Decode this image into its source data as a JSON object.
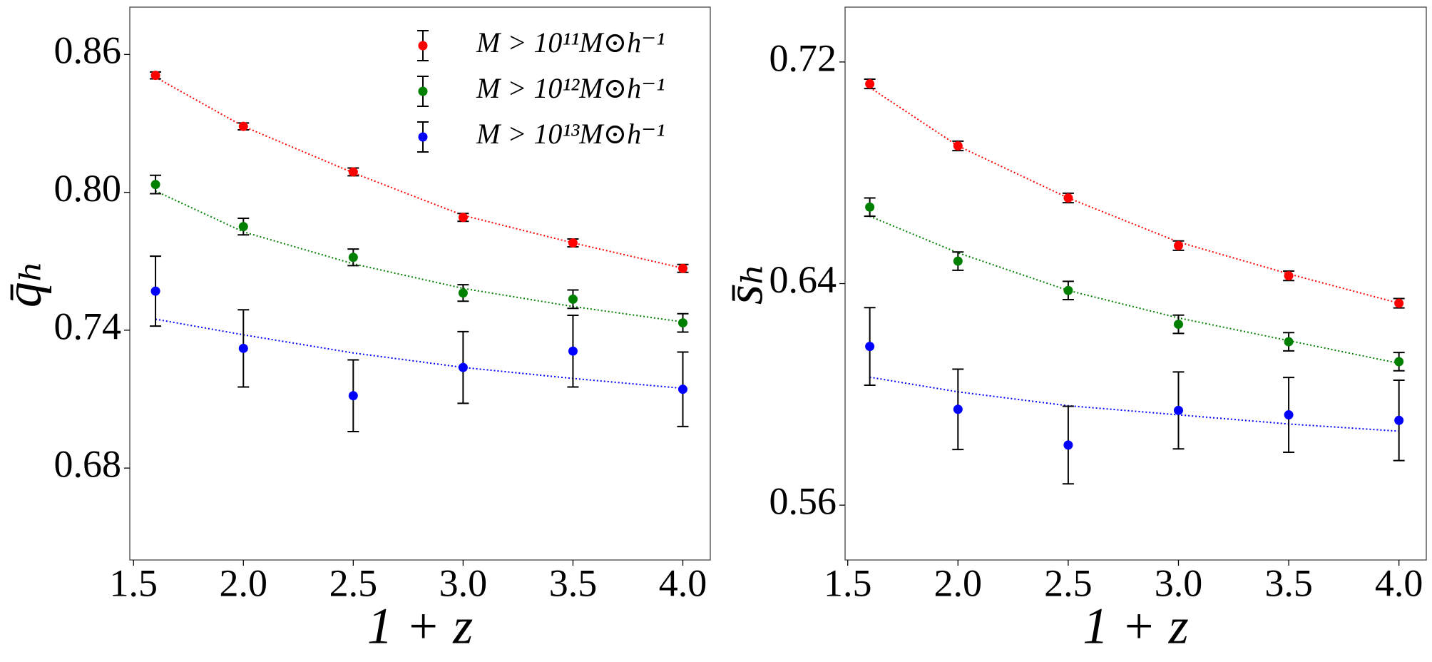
{
  "chart_data": [
    {
      "type": "errorbar",
      "xlabel": "1 + z",
      "ylabel": "q̄ₕ",
      "x": [
        1.6,
        2,
        2.5,
        3,
        3.5,
        4
      ],
      "xlim": [
        1.483,
        4.125
      ],
      "ylim": [
        0.64,
        0.8806
      ],
      "xticks": [
        1.5,
        {
          "value": 2,
          "label": "2.0"
        },
        2.5,
        {
          "value": 3,
          "label": "3.0"
        },
        3.5,
        {
          "value": 4,
          "label": "4.0"
        }
      ],
      "yticks": [
        0.68,
        0.74,
        {
          "value": 0.8,
          "label": "0.80"
        },
        0.86
      ],
      "legend": "upper right",
      "series": [
        {
          "name": "M > 10¹¹M⊙h⁻¹",
          "color": "#ff0000",
          "values": [
            0.8509,
            0.8287,
            0.8089,
            0.7891,
            0.778,
            0.7669
          ],
          "errors": [
            0.0015,
            0.0015,
            0.0017,
            0.0017,
            0.0017,
            0.0017
          ],
          "fit": [
            0.8501,
            0.8287,
            0.8085,
            0.79,
            0.778,
            0.767
          ]
        },
        {
          "name": "M > 10¹²M⊙h⁻¹",
          "color": "#008000",
          "values": [
            0.8034,
            0.7851,
            0.7717,
            0.7562,
            0.7535,
            0.7432
          ],
          "errors": [
            0.004,
            0.0036,
            0.0036,
            0.0036,
            0.004,
            0.004
          ],
          "fit": [
            0.8006,
            0.7828,
            0.7689,
            0.7582,
            0.7503,
            0.7436
          ]
        },
        {
          "name": "M > 10¹³M⊙h⁻¹",
          "color": "#0000ff",
          "values": [
            0.757,
            0.7321,
            0.7115,
            0.7238,
            0.7309,
            0.7143
          ],
          "errors": [
            0.0152,
            0.0168,
            0.0156,
            0.0156,
            0.0156,
            0.0162
          ],
          "fit": [
            0.7448,
            0.738,
            0.7301,
            0.7238,
            0.719,
            0.7147
          ]
        }
      ]
    },
    {
      "type": "errorbar",
      "xlabel": "1 + z",
      "ylabel": "s̄ₕ",
      "x": [
        1.6,
        2,
        2.5,
        3,
        3.5,
        4
      ],
      "xlim": [
        1.488,
        4.124
      ],
      "ylim": [
        0.5402,
        0.7398
      ],
      "xticks": [
        1.5,
        {
          "value": 2,
          "label": "2.0"
        },
        2.5,
        {
          "value": 3,
          "label": "3.0"
        },
        3.5,
        {
          "value": 4,
          "label": "4.0"
        }
      ],
      "yticks": [
        0.56,
        0.64,
        0.72
      ],
      "series": [
        {
          "color": "#ff0000",
          "values": [
            0.7121,
            0.6897,
            0.6709,
            0.6537,
            0.6428,
            0.6329
          ],
          "errors": [
            0.0017,
            0.0017,
            0.0017,
            0.0017,
            0.0017,
            0.0017
          ],
          "fit": [
            0.7108,
            0.6897,
            0.6709,
            0.655,
            0.6435,
            0.6329
          ]
        },
        {
          "color": "#008000",
          "values": [
            0.6676,
            0.6481,
            0.6375,
            0.6253,
            0.619,
            0.6118
          ],
          "errors": [
            0.0033,
            0.0033,
            0.0033,
            0.0033,
            0.0033,
            0.0033
          ],
          "fit": [
            0.6643,
            0.6511,
            0.6375,
            0.6276,
            0.6194,
            0.6112
          ]
        },
        {
          "color": "#0000ff",
          "values": [
            0.6173,
            0.5946,
            0.5817,
            0.5942,
            0.5926,
            0.5906
          ],
          "errors": [
            0.014,
            0.0145,
            0.014,
            0.0139,
            0.0135,
            0.0145
          ],
          "fit": [
            0.6062,
            0.6009,
            0.5959,
            0.5926,
            0.5893,
            0.5867
          ]
        }
      ]
    }
  ]
}
